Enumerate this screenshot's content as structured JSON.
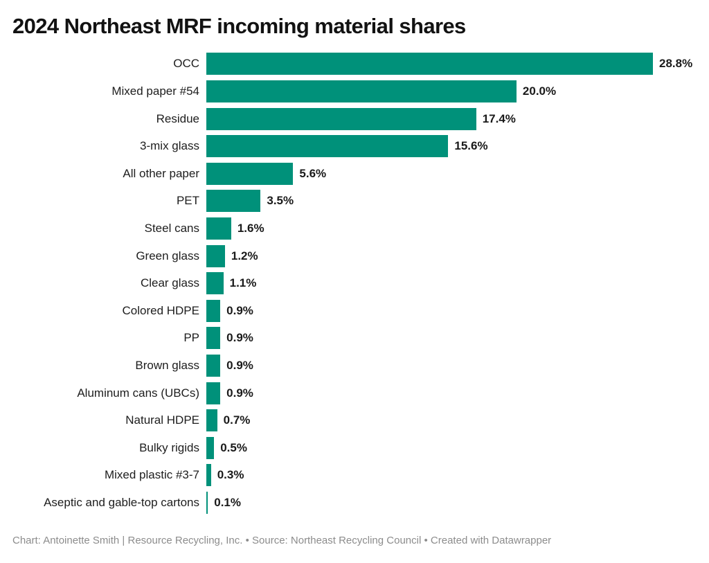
{
  "colors": {
    "bar": "#00917a",
    "title": "#121212",
    "label": "#1d1d1d",
    "value": "#1a1a1a",
    "footer": "#8c8c8c",
    "background": "#ffffff"
  },
  "chart_data": {
    "type": "bar",
    "orientation": "horizontal",
    "title": "2024 Northeast MRF incoming material shares",
    "categories": [
      "OCC",
      "Mixed paper #54",
      "Residue",
      "3-mix glass",
      "All other paper",
      "PET",
      "Steel cans",
      "Green glass",
      "Clear glass",
      "Colored HDPE",
      "PP",
      "Brown glass",
      "Aluminum cans (UBCs)",
      "Natural HDPE",
      "Bulky rigids",
      "Mixed plastic #3-7",
      "Aseptic and gable-top cartons"
    ],
    "values": [
      28.8,
      20.0,
      17.4,
      15.6,
      5.6,
      3.5,
      1.6,
      1.2,
      1.1,
      0.9,
      0.9,
      0.9,
      0.9,
      0.7,
      0.5,
      0.3,
      0.1
    ],
    "value_labels": [
      "28.8%",
      "20.0%",
      "17.4%",
      "15.6%",
      "5.6%",
      "3.5%",
      "1.6%",
      "1.2%",
      "1.1%",
      "0.9%",
      "0.9%",
      "0.9%",
      "0.9%",
      "0.7%",
      "0.5%",
      "0.3%",
      "0.1%"
    ],
    "unit": "%",
    "xlabel": "",
    "ylabel": "",
    "xlim": [
      0,
      28.8
    ],
    "grid": false,
    "legend": false,
    "data_labels": "outside-end",
    "category_labels": "right-aligned-left-of-bars"
  },
  "footer": {
    "chart_label": "Chart:",
    "chart_credit": "Antoinette Smith | Resource Recycling, Inc.",
    "bullet": "•",
    "source_label": "Source:",
    "source_name": "Northeast Recycling Council",
    "created": "Created with Datawrapper"
  }
}
